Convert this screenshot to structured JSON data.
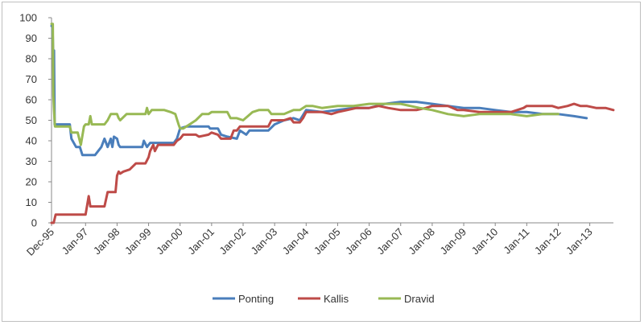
{
  "chart_data": {
    "type": "line",
    "title": "",
    "xlabel": "",
    "ylabel": "",
    "ylim": [
      0,
      100
    ],
    "yticks": [
      0,
      10,
      20,
      30,
      40,
      50,
      60,
      70,
      80,
      90,
      100
    ],
    "xlim": [
      1995.92,
      2013.75
    ],
    "xticks": [
      {
        "label": "Dec-95",
        "x": 1995.92
      },
      {
        "label": "Jan-97",
        "x": 1997.0
      },
      {
        "label": "Jan-98",
        "x": 1998.0
      },
      {
        "label": "Jan-99",
        "x": 1999.0
      },
      {
        "label": "Jan-00",
        "x": 2000.0
      },
      {
        "label": "Jan-01",
        "x": 2001.0
      },
      {
        "label": "Jan-02",
        "x": 2002.0
      },
      {
        "label": "Jan-03",
        "x": 2003.0
      },
      {
        "label": "Jan-04",
        "x": 2004.0
      },
      {
        "label": "Jan-05",
        "x": 2005.0
      },
      {
        "label": "Jan-06",
        "x": 2006.0
      },
      {
        "label": "Jan-07",
        "x": 2007.0
      },
      {
        "label": "Jan-08",
        "x": 2008.0
      },
      {
        "label": "Jan-09",
        "x": 2009.0
      },
      {
        "label": "Jan-10",
        "x": 2010.0
      },
      {
        "label": "Jan-11",
        "x": 2011.0
      },
      {
        "label": "Jan-12",
        "x": 2012.0
      },
      {
        "label": "Jan-13",
        "x": 2013.0
      }
    ],
    "grid": false,
    "legend_position": "bottom",
    "series": [
      {
        "name": "Ponting",
        "color": "#4a7ebb",
        "points": [
          [
            1995.92,
            96
          ],
          [
            1995.95,
            96
          ],
          [
            1995.97,
            84
          ],
          [
            1996.0,
            84
          ],
          [
            1996.02,
            48
          ],
          [
            1996.5,
            48
          ],
          [
            1996.55,
            41
          ],
          [
            1996.7,
            37
          ],
          [
            1996.82,
            37
          ],
          [
            1996.9,
            33
          ],
          [
            1997.3,
            33
          ],
          [
            1997.5,
            37
          ],
          [
            1997.6,
            41
          ],
          [
            1997.7,
            37
          ],
          [
            1997.8,
            41
          ],
          [
            1997.85,
            37
          ],
          [
            1997.9,
            42
          ],
          [
            1998.0,
            41
          ],
          [
            1998.05,
            38
          ],
          [
            1998.1,
            37
          ],
          [
            1998.8,
            37
          ],
          [
            1998.85,
            40
          ],
          [
            1998.95,
            37
          ],
          [
            1999.05,
            39
          ],
          [
            1999.8,
            39
          ],
          [
            1999.9,
            41
          ],
          [
            2000.0,
            46
          ],
          [
            2000.2,
            47
          ],
          [
            2000.9,
            47
          ],
          [
            2000.95,
            46
          ],
          [
            2001.2,
            46
          ],
          [
            2001.3,
            43
          ],
          [
            2001.5,
            42
          ],
          [
            2001.8,
            41
          ],
          [
            2001.9,
            45
          ],
          [
            2002.1,
            43
          ],
          [
            2002.2,
            45
          ],
          [
            2002.8,
            45
          ],
          [
            2003.0,
            48
          ],
          [
            2003.3,
            50
          ],
          [
            2003.6,
            51
          ],
          [
            2003.8,
            50
          ],
          [
            2004.0,
            55
          ],
          [
            2004.5,
            54
          ],
          [
            2005.0,
            55
          ],
          [
            2005.5,
            56
          ],
          [
            2006.0,
            56
          ],
          [
            2006.5,
            58
          ],
          [
            2007.0,
            59
          ],
          [
            2007.5,
            59
          ],
          [
            2008.0,
            58
          ],
          [
            2008.5,
            57
          ],
          [
            2009.0,
            56
          ],
          [
            2009.5,
            56
          ],
          [
            2010.0,
            55
          ],
          [
            2010.5,
            54
          ],
          [
            2011.0,
            54
          ],
          [
            2011.5,
            53
          ],
          [
            2012.0,
            53
          ],
          [
            2012.5,
            52
          ],
          [
            2012.9,
            51
          ]
        ]
      },
      {
        "name": "Kallis",
        "color": "#be4b48",
        "points": [
          [
            1995.92,
            0
          ],
          [
            1995.99,
            0
          ],
          [
            1996.05,
            4
          ],
          [
            1996.9,
            4
          ],
          [
            1997.0,
            4
          ],
          [
            1997.1,
            13
          ],
          [
            1997.15,
            8
          ],
          [
            1997.6,
            8
          ],
          [
            1997.7,
            15
          ],
          [
            1997.95,
            15
          ],
          [
            1998.0,
            23
          ],
          [
            1998.05,
            25
          ],
          [
            1998.1,
            24
          ],
          [
            1998.2,
            25
          ],
          [
            1998.4,
            26
          ],
          [
            1998.6,
            29
          ],
          [
            1998.9,
            29
          ],
          [
            1999.0,
            32
          ],
          [
            1999.05,
            35
          ],
          [
            1999.15,
            38
          ],
          [
            1999.2,
            35
          ],
          [
            1999.3,
            38
          ],
          [
            1999.8,
            38
          ],
          [
            1999.9,
            40
          ],
          [
            2000.0,
            41
          ],
          [
            2000.1,
            43
          ],
          [
            2000.5,
            43
          ],
          [
            2000.6,
            42
          ],
          [
            2000.9,
            43
          ],
          [
            2001.0,
            44
          ],
          [
            2001.2,
            43
          ],
          [
            2001.3,
            41
          ],
          [
            2001.6,
            41
          ],
          [
            2001.7,
            45
          ],
          [
            2001.8,
            45
          ],
          [
            2001.9,
            47
          ],
          [
            2002.0,
            47
          ],
          [
            2002.1,
            47
          ],
          [
            2002.5,
            47
          ],
          [
            2002.6,
            47
          ],
          [
            2002.8,
            47
          ],
          [
            2002.9,
            50
          ],
          [
            2003.2,
            50
          ],
          [
            2003.3,
            50
          ],
          [
            2003.5,
            51
          ],
          [
            2003.6,
            49
          ],
          [
            2003.8,
            49
          ],
          [
            2003.9,
            51
          ],
          [
            2004.0,
            54
          ],
          [
            2004.5,
            54
          ],
          [
            2004.8,
            53
          ],
          [
            2005.0,
            54
          ],
          [
            2005.3,
            55
          ],
          [
            2005.6,
            56
          ],
          [
            2006.0,
            56
          ],
          [
            2006.3,
            57
          ],
          [
            2006.6,
            56
          ],
          [
            2007.0,
            55
          ],
          [
            2007.5,
            55
          ],
          [
            2007.8,
            56
          ],
          [
            2008.0,
            57
          ],
          [
            2008.5,
            57
          ],
          [
            2008.8,
            55
          ],
          [
            2009.0,
            55
          ],
          [
            2009.5,
            54
          ],
          [
            2010.0,
            54
          ],
          [
            2010.5,
            54
          ],
          [
            2010.9,
            56
          ],
          [
            2011.0,
            57
          ],
          [
            2011.5,
            57
          ],
          [
            2011.8,
            57
          ],
          [
            2012.0,
            56
          ],
          [
            2012.3,
            57
          ],
          [
            2012.5,
            58
          ],
          [
            2012.7,
            57
          ],
          [
            2012.9,
            57
          ],
          [
            2013.2,
            56
          ],
          [
            2013.5,
            56
          ],
          [
            2013.75,
            55
          ]
        ]
      },
      {
        "name": "Dravid",
        "color": "#98b954",
        "points": [
          [
            1995.92,
            97
          ],
          [
            1995.96,
            97
          ],
          [
            1995.98,
            62
          ],
          [
            1996.0,
            55
          ],
          [
            1996.03,
            47
          ],
          [
            1996.5,
            47
          ],
          [
            1996.55,
            44
          ],
          [
            1996.75,
            44
          ],
          [
            1996.85,
            38
          ],
          [
            1996.95,
            47
          ],
          [
            1997.0,
            48
          ],
          [
            1997.1,
            48
          ],
          [
            1997.15,
            52
          ],
          [
            1997.2,
            48
          ],
          [
            1997.6,
            48
          ],
          [
            1997.7,
            50
          ],
          [
            1997.8,
            53
          ],
          [
            1998.0,
            53
          ],
          [
            1998.05,
            51
          ],
          [
            1998.1,
            50
          ],
          [
            1998.3,
            53
          ],
          [
            1998.9,
            53
          ],
          [
            1998.95,
            56
          ],
          [
            1999.0,
            53
          ],
          [
            1999.1,
            55
          ],
          [
            1999.5,
            55
          ],
          [
            1999.7,
            54
          ],
          [
            1999.85,
            53
          ],
          [
            1999.95,
            48
          ],
          [
            2000.0,
            46
          ],
          [
            2000.1,
            46
          ],
          [
            2000.3,
            48
          ],
          [
            2000.5,
            50
          ],
          [
            2000.7,
            53
          ],
          [
            2000.9,
            53
          ],
          [
            2001.0,
            54
          ],
          [
            2001.5,
            54
          ],
          [
            2001.6,
            51
          ],
          [
            2001.8,
            51
          ],
          [
            2002.0,
            50
          ],
          [
            2002.3,
            54
          ],
          [
            2002.5,
            55
          ],
          [
            2002.8,
            55
          ],
          [
            2002.9,
            53
          ],
          [
            2003.3,
            53
          ],
          [
            2003.6,
            55
          ],
          [
            2003.8,
            55
          ],
          [
            2004.0,
            57
          ],
          [
            2004.2,
            57
          ],
          [
            2004.5,
            56
          ],
          [
            2005.0,
            57
          ],
          [
            2005.5,
            57
          ],
          [
            2006.0,
            58
          ],
          [
            2006.5,
            58
          ],
          [
            2007.0,
            58
          ],
          [
            2007.3,
            57
          ],
          [
            2007.6,
            56
          ],
          [
            2008.0,
            55
          ],
          [
            2008.5,
            53
          ],
          [
            2009.0,
            52
          ],
          [
            2009.5,
            53
          ],
          [
            2010.0,
            53
          ],
          [
            2010.5,
            53
          ],
          [
            2011.0,
            52
          ],
          [
            2011.5,
            53
          ],
          [
            2011.8,
            53
          ],
          [
            2012.0,
            53
          ]
        ]
      }
    ]
  }
}
